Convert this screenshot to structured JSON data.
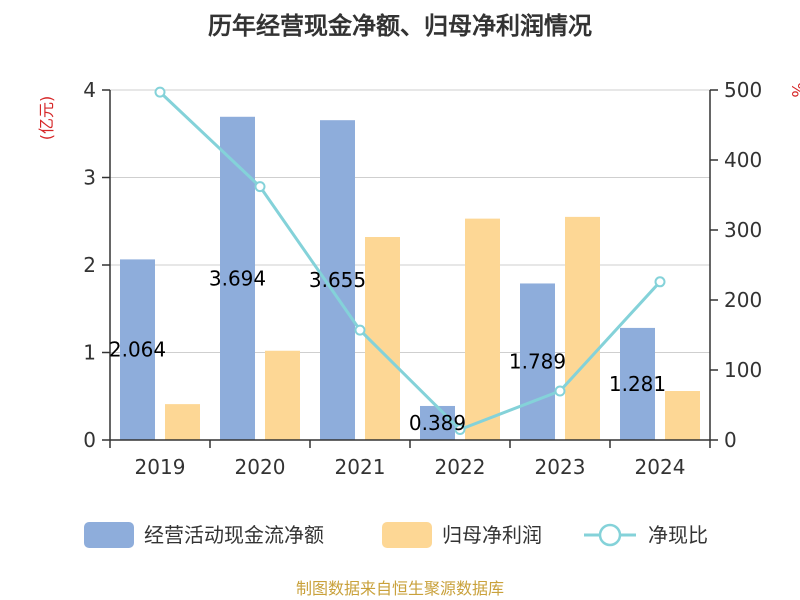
{
  "chart_data": {
    "type": "bar",
    "title": "历年经营现金净额、归母净利润情况",
    "categories": [
      "2019",
      "2020",
      "2021",
      "2022",
      "2023",
      "2024"
    ],
    "left_axis": {
      "label": "(亿元)",
      "min": 0,
      "max": 4,
      "ticks": [
        "0",
        "1",
        "2",
        "3",
        "4"
      ]
    },
    "right_axis": {
      "label": "%",
      "min": 0,
      "max": 500,
      "ticks": [
        "0",
        "100",
        "200",
        "300",
        "400",
        "500"
      ]
    },
    "series": [
      {
        "name": "经营活动现金流净额",
        "type": "bar",
        "axis": "left",
        "color": "#8eaddb",
        "values": [
          2.064,
          3.694,
          3.655,
          0.389,
          1.789,
          1.281
        ],
        "labels": [
          "2.064",
          "3.694",
          "3.655",
          "0.389",
          "1.789",
          "1.281"
        ]
      },
      {
        "name": "归母净利润",
        "type": "bar",
        "axis": "left",
        "color": "#fdd795",
        "values": [
          0.41,
          1.02,
          2.32,
          2.53,
          2.55,
          0.56
        ]
      },
      {
        "name": "净现比",
        "type": "line",
        "axis": "right",
        "color": "#84d2d9",
        "values": [
          497,
          362,
          157,
          15,
          70,
          226
        ]
      }
    ],
    "grid": true,
    "legend": "bottom"
  },
  "colors": {
    "axis_label": "#d62728",
    "source": "#c9a13b"
  },
  "source": "制图数据来自恒生聚源数据库"
}
